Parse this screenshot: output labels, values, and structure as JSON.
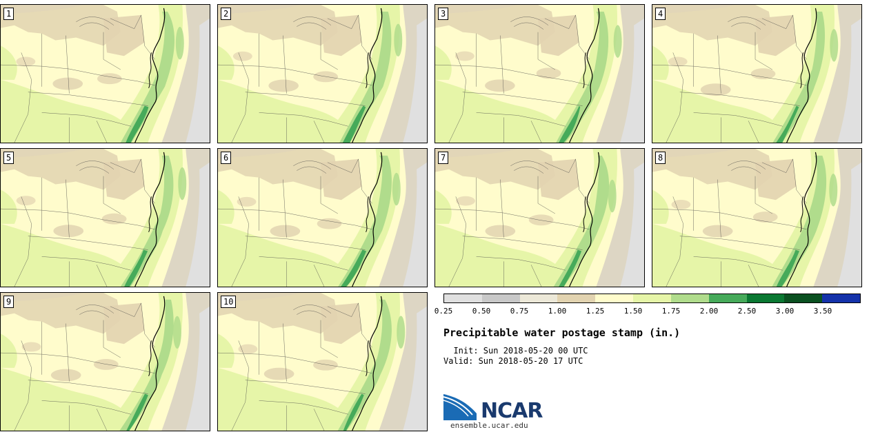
{
  "panels": [
    {
      "label": "1"
    },
    {
      "label": "2"
    },
    {
      "label": "3"
    },
    {
      "label": "4"
    },
    {
      "label": "5"
    },
    {
      "label": "6"
    },
    {
      "label": "7"
    },
    {
      "label": "8"
    },
    {
      "label": "9"
    },
    {
      "label": "10"
    }
  ],
  "colorbar": {
    "colors": [
      "#e0e0e0",
      "#c8c8c8",
      "#ece8d8",
      "#e2d3b0",
      "#fffccc",
      "#e6f5a8",
      "#b0dc8c",
      "#46aa5a",
      "#0a7832",
      "#0a5020",
      "#1432aa"
    ],
    "ticks": [
      "0.25",
      "0.50",
      "0.75",
      "1.00",
      "1.25",
      "1.50",
      "1.75",
      "2.00",
      "2.50",
      "3.00",
      "3.50"
    ]
  },
  "title": "Precipitable water postage stamp (in.)",
  "init": "  Init: Sun 2018-05-20 00 UTC",
  "valid": "Valid: Sun 2018-05-20 17 UTC",
  "logo_text": "NCAR",
  "url": "ensemble.ucar.edu",
  "map_colors": {
    "base": "#fffccc",
    "dry": "#e2d3b0",
    "ocean_dry": "#ddd6c4",
    "gray": "#e0e0e0",
    "moist_light": "#e6f5a8",
    "moist": "#b0dc8c",
    "wet": "#46aa5a"
  }
}
